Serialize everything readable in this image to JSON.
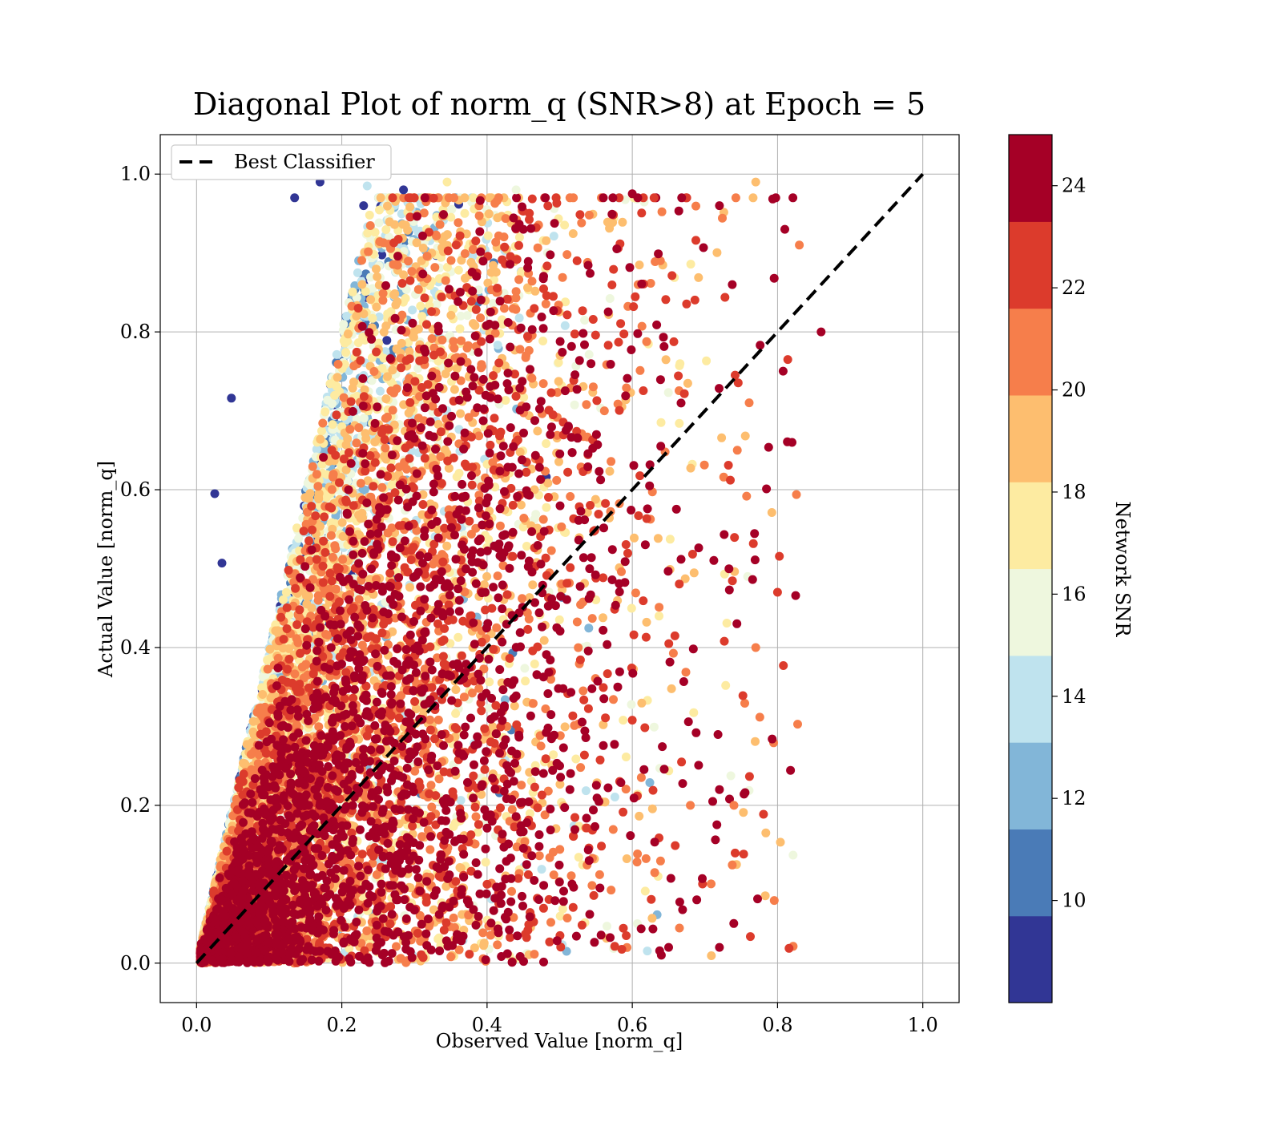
{
  "chart_data": {
    "type": "scatter",
    "title": "Diagonal Plot of norm_q (SNR>8) at Epoch = 5",
    "xlabel": "Observed Value [norm_q]",
    "ylabel": "Actual Value [norm_q]",
    "xlim": [
      -0.05,
      1.05
    ],
    "ylim": [
      -0.05,
      1.05
    ],
    "xticks": [
      "0.0",
      "0.2",
      "0.4",
      "0.6",
      "0.8",
      "1.0"
    ],
    "yticks": [
      "0.0",
      "0.2",
      "0.4",
      "0.6",
      "0.8",
      "1.0"
    ],
    "grid": true,
    "legend": {
      "position": "top-left",
      "entries": [
        "Best Classifier"
      ]
    },
    "reference_line": {
      "name": "Best Classifier",
      "style": "dashed",
      "color": "#000000",
      "x": [
        0.0,
        1.0
      ],
      "y": [
        0.0,
        1.0
      ]
    },
    "colorbar": {
      "label": "Network SNR",
      "range": [
        8,
        25
      ],
      "ticks": [
        "10",
        "12",
        "14",
        "16",
        "18",
        "20",
        "22",
        "24"
      ],
      "bands": [
        {
          "from": 8,
          "to": 9.7,
          "color": "#313695"
        },
        {
          "from": 9.7,
          "to": 11.4,
          "color": "#4a7bb7"
        },
        {
          "from": 11.4,
          "to": 13.1,
          "color": "#82b6d8"
        },
        {
          "from": 13.1,
          "to": 14.8,
          "color": "#bfe3ee"
        },
        {
          "from": 14.8,
          "to": 16.5,
          "color": "#eef7de"
        },
        {
          "from": 16.5,
          "to": 18.2,
          "color": "#fdeba1"
        },
        {
          "from": 18.2,
          "to": 19.9,
          "color": "#fdbe6f"
        },
        {
          "from": 19.9,
          "to": 21.6,
          "color": "#f67e4b"
        },
        {
          "from": 21.6,
          "to": 23.3,
          "color": "#dc3b2c"
        },
        {
          "from": 23.3,
          "to": 25,
          "color": "#a50026"
        }
      ]
    },
    "points": [
      [
        0.86,
        0.8,
        25
      ],
      [
        0.82,
        0.66,
        24
      ],
      [
        0.81,
        0.93,
        25
      ],
      [
        0.8,
        0.47,
        23
      ],
      [
        0.83,
        0.91,
        21
      ],
      [
        0.72,
        0.02,
        24
      ],
      [
        0.64,
        0.01,
        25
      ],
      [
        0.65,
        0.02,
        25
      ],
      [
        0.025,
        0.595,
        9
      ],
      [
        0.035,
        0.507,
        9
      ],
      [
        0.048,
        0.716,
        9
      ],
      [
        0.135,
        0.97,
        9
      ],
      [
        0.17,
        0.99,
        9
      ],
      [
        0.23,
        0.96,
        9
      ],
      [
        0.285,
        0.98,
        9
      ],
      [
        0.235,
        0.985,
        14
      ],
      [
        0.345,
        0.99,
        17
      ],
      [
        0.44,
        0.98,
        16
      ],
      [
        0.45,
        0.93,
        25
      ],
      [
        0.6,
        0.975,
        24
      ],
      [
        0.63,
        0.97,
        22
      ],
      [
        0.72,
        0.96,
        24
      ],
      [
        0.77,
        0.99,
        19
      ],
      [
        0.58,
        0.35,
        25
      ],
      [
        0.5,
        0.25,
        25
      ],
      [
        0.72,
        0.22,
        24
      ],
      [
        0.68,
        0.2,
        20
      ],
      [
        0.74,
        0.2,
        21
      ],
      [
        0.77,
        0.4,
        21
      ]
    ]
  }
}
